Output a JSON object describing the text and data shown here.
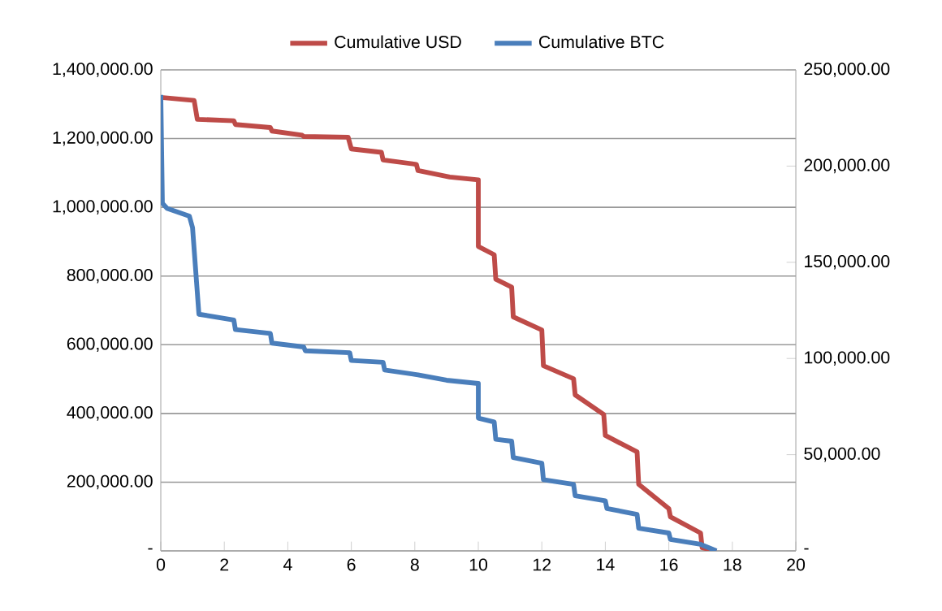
{
  "chart_data": {
    "type": "line",
    "legend": "top",
    "grid": "y",
    "marker": "none",
    "line_style": "solid",
    "xlim": [
      0,
      20
    ],
    "xticks": [
      0,
      2,
      4,
      6,
      8,
      10,
      12,
      14,
      16,
      18,
      20
    ],
    "ylim": [
      0,
      1400000
    ],
    "yticks": [
      {
        "value": 0,
        "label": "-"
      },
      {
        "value": 200000,
        "label": "200,000.00"
      },
      {
        "value": 400000,
        "label": "400,000.00"
      },
      {
        "value": 600000,
        "label": "600,000.00"
      },
      {
        "value": 800000,
        "label": "800,000.00"
      },
      {
        "value": 1000000,
        "label": "1,000,000.00"
      },
      {
        "value": 1200000,
        "label": "1,200,000.00"
      },
      {
        "value": 1400000,
        "label": "1,400,000.00"
      }
    ],
    "y2lim": [
      0,
      250000
    ],
    "y2ticks": [
      {
        "value": 0,
        "label": "-"
      },
      {
        "value": 50000,
        "label": "50,000.00"
      },
      {
        "value": 100000,
        "label": "100,000.00"
      },
      {
        "value": 150000,
        "label": "150,000.00"
      },
      {
        "value": 200000,
        "label": "200,000.00"
      },
      {
        "value": 250000,
        "label": "250,000.00"
      }
    ],
    "series": [
      {
        "name": "Cumulative USD",
        "color": "#be4b48",
        "x": [
          0,
          1.05,
          1.15,
          2.3,
          2.35,
          3.45,
          3.5,
          4.45,
          4.5,
          5.9,
          6.0,
          6.95,
          7.0,
          8.05,
          8.1,
          9.1,
          10.0,
          10.0,
          10.5,
          10.55,
          11.05,
          11.1,
          12.0,
          12.05,
          13.0,
          13.05,
          13.95,
          14.0,
          15.0,
          15.05,
          16.0,
          16.05,
          17.0,
          17.05,
          17.5
        ],
        "values": [
          1320000,
          1311000,
          1256000,
          1252000,
          1241000,
          1232000,
          1222000,
          1210000,
          1206000,
          1204000,
          1170000,
          1160000,
          1138000,
          1125000,
          1107000,
          1088000,
          1080000,
          886000,
          862000,
          791000,
          768000,
          681000,
          643000,
          539000,
          501000,
          454000,
          397000,
          336000,
          288000,
          194000,
          123000,
          99000,
          52000,
          9000,
          0
        ]
      },
      {
        "name": "Cumulative BTC",
        "color": "#4a7ebb",
        "axis": "y2",
        "x": [
          0,
          0.05,
          0.2,
          0.9,
          1.0,
          1.1,
          1.2,
          2.3,
          2.35,
          3.45,
          3.5,
          4.5,
          4.55,
          5.95,
          6.0,
          7.0,
          7.05,
          8.1,
          9.0,
          10.0,
          10.0,
          10.5,
          10.55,
          11.05,
          11.1,
          12.0,
          12.05,
          13.0,
          13.05,
          14.0,
          14.05,
          15.0,
          15.05,
          16.0,
          16.05,
          17.0,
          17.5
        ],
        "values": [
          237000,
          180700,
          178000,
          174000,
          168000,
          145500,
          123000,
          120000,
          115000,
          113000,
          108000,
          106000,
          104000,
          103000,
          99000,
          98000,
          94000,
          91500,
          88700,
          87000,
          69000,
          67000,
          58000,
          57000,
          48500,
          45600,
          37000,
          34600,
          28700,
          26000,
          22000,
          19000,
          11800,
          9300,
          6000,
          3400,
          0
        ]
      }
    ]
  }
}
